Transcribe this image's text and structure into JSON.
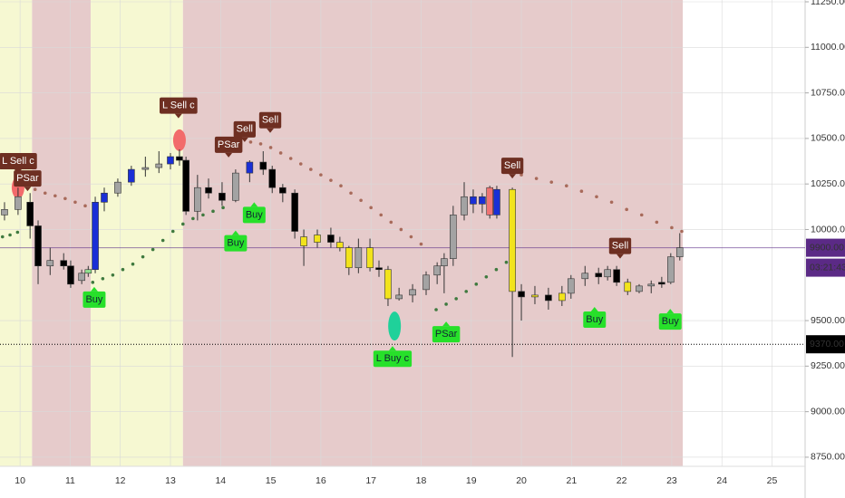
{
  "chart_data": {
    "type": "candlestick",
    "x": [
      9.69,
      9.96,
      10.2,
      10.36,
      10.6,
      10.87,
      11.01,
      11.23,
      11.36,
      11.5,
      11.68,
      11.95,
      12.22,
      12.5,
      12.77,
      13.0,
      13.18,
      13.31,
      13.54,
      13.76,
      14.03,
      14.3,
      14.58,
      14.85,
      15.03,
      15.24,
      15.48,
      15.66,
      15.93,
      16.2,
      16.38,
      16.56,
      16.75,
      16.98,
      17.16,
      17.34,
      17.56,
      17.83,
      18.1,
      18.32,
      18.46,
      18.64,
      18.86,
      19.04,
      19.22,
      19.37,
      19.51,
      19.82,
      20.0,
      20.27,
      20.54,
      20.81,
      20.99,
      21.27,
      21.54,
      21.72,
      21.9,
      22.12,
      22.35,
      22.59,
      22.8,
      22.98,
      23.16
    ],
    "open": [
      10080,
      10110,
      10150,
      10020,
      9800,
      9830,
      9800,
      9720,
      9760,
      9780,
      10150,
      10200,
      10260,
      10330,
      10340,
      10360,
      10400,
      10380,
      10100,
      10230,
      10200,
      10160,
      10310,
      10370,
      10330,
      10230,
      10200,
      9910,
      9930,
      9970,
      9930,
      9900,
      9790,
      9900,
      9790,
      9780,
      9620,
      9640,
      9670,
      9750,
      9800,
      9840,
      10080,
      10180,
      10140,
      10230,
      10080,
      10220,
      9660,
      9630,
      9640,
      9610,
      9650,
      9730,
      9760,
      9740,
      9780,
      9710,
      9660,
      9690,
      9700,
      9710,
      9850
    ],
    "high": [
      10150,
      10230,
      10200,
      10050,
      9900,
      9870,
      9830,
      9780,
      9800,
      10180,
      10230,
      10280,
      10350,
      10400,
      10430,
      10420,
      10440,
      10400,
      10300,
      10280,
      10260,
      10330,
      10380,
      10430,
      10350,
      10250,
      10220,
      10000,
      10000,
      10010,
      9960,
      9910,
      9950,
      9950,
      9830,
      9800,
      9680,
      9700,
      9770,
      9820,
      9870,
      10130,
      10260,
      10220,
      10200,
      10240,
      10240,
      10230,
      9700,
      9690,
      9680,
      9690,
      9750,
      9800,
      9790,
      9800,
      9800,
      9730,
      9700,
      9720,
      9740,
      9870,
      9980
    ],
    "low": [
      10050,
      10080,
      9950,
      9700,
      9750,
      9780,
      9680,
      9700,
      9740,
      9760,
      10100,
      10180,
      10240,
      10290,
      10310,
      10330,
      10350,
      10080,
      10050,
      10170,
      10130,
      10150,
      10260,
      10300,
      10200,
      10150,
      9950,
      9800,
      9900,
      9900,
      9880,
      9750,
      9760,
      9770,
      9740,
      9580,
      9610,
      9600,
      9640,
      9700,
      9650,
      9800,
      10050,
      10090,
      10090,
      10060,
      10060,
      9300,
      9500,
      9590,
      9560,
      9580,
      9620,
      9690,
      9700,
      9720,
      9690,
      9640,
      9650,
      9650,
      9680,
      9700,
      9830
    ],
    "close": [
      10110,
      10180,
      10020,
      9800,
      9830,
      9800,
      9700,
      9760,
      9780,
      10150,
      10200,
      10260,
      10330,
      10340,
      10360,
      10400,
      10380,
      10100,
      10230,
      10200,
      10160,
      10310,
      10370,
      10330,
      10230,
      10200,
      9990,
      9960,
      9970,
      9930,
      9900,
      9790,
      9900,
      9790,
      9780,
      9620,
      9640,
      9670,
      9750,
      9800,
      9840,
      10080,
      10180,
      10140,
      10180,
      10080,
      10220,
      9660,
      9630,
      9640,
      9610,
      9650,
      9730,
      9760,
      9740,
      9780,
      9710,
      9660,
      9690,
      9700,
      9710,
      9850,
      9900
    ],
    "colors": [
      "#a3a3a3",
      "#a3a3a3",
      "#000000",
      "#000000",
      "#a3a3a3",
      "#000000",
      "#000000",
      "#a3a3a3",
      "#8fe08f",
      "#1a2fd6",
      "#1a2fd6",
      "#a3a3a3",
      "#1a2fd6",
      "#a3a3a3",
      "#a3a3a3",
      "#1a2fd6",
      "#000000",
      "#000000",
      "#a3a3a3",
      "#000000",
      "#000000",
      "#a3a3a3",
      "#1a2fd6",
      "#000000",
      "#000000",
      "#000000",
      "#000000",
      "#f2e31c",
      "#f2e31c",
      "#000000",
      "#f2e31c",
      "#f2e31c",
      "#a3a3a3",
      "#f2e31c",
      "#000000",
      "#f2e31c",
      "#a3a3a3",
      "#a3a3a3",
      "#a3a3a3",
      "#a3a3a3",
      "#a3a3a3",
      "#a3a3a3",
      "#a3a3a3",
      "#1a2fd6",
      "#1a2fd6",
      "#f07474",
      "#1a2fd6",
      "#f2e31c",
      "#000000",
      "#f2e31c",
      "#000000",
      "#f2e31c",
      "#a3a3a3",
      "#a3a3a3",
      "#000000",
      "#a3a3a3",
      "#000000",
      "#f2e31c",
      "#a3a3a3",
      "#a3a3a3",
      "#000000",
      "#a3a3a3",
      "#a3a3a3"
    ],
    "xlim": [
      9.6,
      25.66
    ],
    "ylim": [
      8700,
      11260
    ],
    "xticks": [
      10,
      11,
      12,
      13,
      14,
      15,
      16,
      17,
      18,
      19,
      20,
      21,
      22,
      23,
      24,
      25
    ],
    "yticks": [
      {
        "value": 8750,
        "label": "8750.00"
      },
      {
        "value": 9000,
        "label": "9000.00"
      },
      {
        "value": 9250,
        "label": "9250.00"
      },
      {
        "value": 9500,
        "label": "9500.00"
      },
      {
        "value": 10000,
        "label": "10000.00"
      },
      {
        "value": 10250,
        "label": "10250.00"
      },
      {
        "value": 10500,
        "label": "10500.00"
      },
      {
        "value": 10750,
        "label": "10750.00"
      },
      {
        "value": 11000,
        "label": "11000.00"
      },
      {
        "value": 11250,
        "label": "11250.00"
      }
    ],
    "grid": true,
    "regions": [
      {
        "from": 9.6,
        "to": 10.24,
        "color": "#f6f8d2"
      },
      {
        "from": 10.24,
        "to": 11.41,
        "color": "#e6cbcb"
      },
      {
        "from": 11.41,
        "to": 13.25,
        "color": "#f6f8d2"
      },
      {
        "from": 13.25,
        "to": 23.22,
        "color": "#e6cbcb"
      }
    ],
    "psar": [
      {
        "color": "#3f7a3f",
        "x": [
          9.65,
          9.8,
          9.95
        ],
        "values": [
          9960,
          9970,
          9985
        ]
      },
      {
        "color": "#a86a5a",
        "x": [
          10.3,
          10.5,
          10.7,
          10.9,
          11.1,
          11.3
        ],
        "values": [
          10220,
          10200,
          10185,
          10170,
          10150,
          10130
        ]
      },
      {
        "color": "#3f7a3f",
        "x": [
          11.45,
          11.65,
          11.85,
          12.05,
          12.25,
          12.45,
          12.65,
          12.85,
          13.05,
          13.25,
          13.45,
          13.65,
          13.85,
          14.05
        ],
        "values": [
          9710,
          9730,
          9750,
          9780,
          9810,
          9850,
          9890,
          9940,
          9990,
          10030,
          10060,
          10080,
          10100,
          10120
        ]
      },
      {
        "color": "#a86a5a",
        "x": [
          14.4,
          14.6,
          14.8,
          15.0,
          15.2,
          15.4,
          15.6,
          15.8,
          16.0,
          16.2,
          16.4,
          16.6,
          16.8,
          17.0,
          17.2,
          17.4,
          17.6,
          17.8,
          18.0
        ],
        "values": [
          10470,
          10480,
          10470,
          10450,
          10420,
          10390,
          10360,
          10330,
          10300,
          10270,
          10240,
          10200,
          10160,
          10120,
          10080,
          10040,
          10000,
          9960,
          9920
        ]
      },
      {
        "color": "#3f7a3f",
        "x": [
          18.3,
          18.5,
          18.7,
          18.9,
          19.1,
          19.3,
          19.5,
          19.7
        ],
        "values": [
          9560,
          9590,
          9620,
          9660,
          9700,
          9740,
          9780,
          9820
        ]
      },
      {
        "color": "#a86a5a",
        "x": [
          20.0,
          20.3,
          20.6,
          20.9,
          21.2,
          21.5,
          21.8,
          22.1,
          22.4,
          22.7,
          23.0,
          23.2
        ],
        "values": [
          10300,
          10280,
          10260,
          10240,
          10210,
          10180,
          10150,
          10110,
          10080,
          10040,
          10010,
          9990
        ]
      }
    ],
    "signal_dots": [
      {
        "x": 9.96,
        "y": 10230,
        "color": "#f26b6b"
      },
      {
        "x": 13.18,
        "y": 10490,
        "color": "#f26b6b"
      },
      {
        "x": 17.47,
        "y": 9470,
        "color": "#1fd19a"
      }
    ],
    "annotations": [
      {
        "text": "L Sell c",
        "x": 9.96,
        "y": 10375,
        "kind": "sell"
      },
      {
        "text": "PSar",
        "x": 10.15,
        "y": 10280,
        "kind": "sell"
      },
      {
        "text": "L Sell c",
        "x": 13.16,
        "y": 10680,
        "kind": "sell"
      },
      {
        "text": "PSar",
        "x": 14.16,
        "y": 10465,
        "kind": "sell"
      },
      {
        "text": "Sell",
        "x": 14.48,
        "y": 10550,
        "kind": "sell"
      },
      {
        "text": "Sell",
        "x": 14.99,
        "y": 10600,
        "kind": "sell"
      },
      {
        "text": "Sell",
        "x": 19.82,
        "y": 10350,
        "kind": "sell"
      },
      {
        "text": "Sell",
        "x": 21.97,
        "y": 9910,
        "kind": "sell"
      },
      {
        "text": "Buy",
        "x": 11.48,
        "y": 9615,
        "kind": "buy"
      },
      {
        "text": "Buy",
        "x": 14.3,
        "y": 9925,
        "kind": "buy"
      },
      {
        "text": "Buy",
        "x": 14.67,
        "y": 10080,
        "kind": "buy"
      },
      {
        "text": "L Buy c",
        "x": 17.43,
        "y": 9290,
        "kind": "buy"
      },
      {
        "text": "PSar",
        "x": 18.5,
        "y": 9425,
        "kind": "buy"
      },
      {
        "text": "Buy",
        "x": 21.46,
        "y": 9505,
        "kind": "buy"
      },
      {
        "text": "Buy",
        "x": 22.97,
        "y": 9495,
        "kind": "buy"
      }
    ],
    "price_lines": [
      {
        "value": 9900,
        "label": "9900.00",
        "color": "#5b2a86",
        "style": "solid"
      },
      {
        "value": 9370,
        "label": "9370.00",
        "color": "#000000",
        "style": "dotted"
      }
    ],
    "countdown": "03:21:43"
  }
}
